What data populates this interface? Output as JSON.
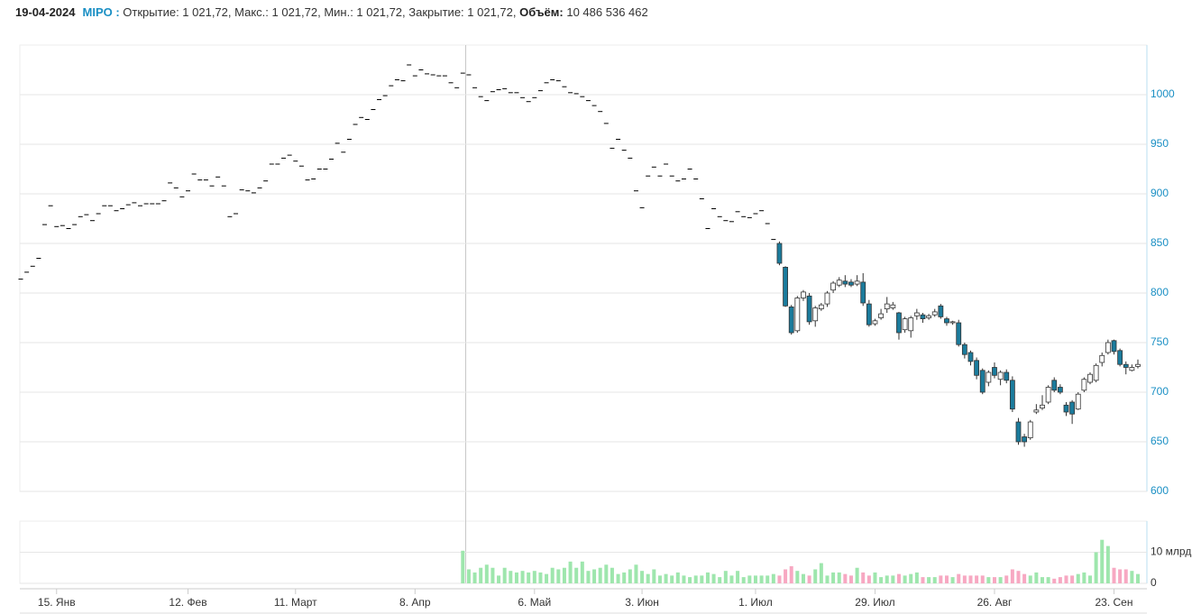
{
  "chart_data": {
    "type": "candlestick",
    "header": {
      "date": "19-04-2024",
      "ticker": "MIPO :",
      "quote": "Открытие: 1 021,72, Макс.: 1 021,72, Мин.: 1 021,72, Закрытие: 1 021,72,",
      "volume_label": "Объём:",
      "volume": "10 486 536 462"
    },
    "categories": [
      null,
      null,
      null,
      null,
      null,
      null,
      "15. Янв",
      null,
      null,
      null,
      null,
      null,
      null,
      null,
      null,
      null,
      null,
      null,
      null,
      null,
      null,
      null,
      null,
      null,
      null,
      null,
      null,
      null,
      "12. Фев",
      null,
      null,
      null,
      null,
      null,
      null,
      null,
      null,
      null,
      null,
      null,
      null,
      null,
      null,
      null,
      null,
      null,
      "11. Март",
      null,
      null,
      null,
      null,
      null,
      null,
      null,
      null,
      null,
      null,
      null,
      null,
      null,
      null,
      null,
      null,
      null,
      null,
      null,
      "8. Апр",
      null,
      null,
      null,
      null,
      null,
      null,
      null,
      null,
      null,
      null,
      null,
      null,
      null,
      null,
      null,
      null,
      null,
      null,
      null,
      "6. Май",
      null,
      null,
      null,
      null,
      null,
      null,
      null,
      null,
      null,
      null,
      null,
      null,
      null,
      null,
      null,
      null,
      null,
      "3. Июн",
      null,
      null,
      null,
      null,
      null,
      null,
      null,
      null,
      null,
      null,
      null,
      null,
      null,
      null,
      null,
      null,
      null,
      null,
      "1. Июл",
      null,
      null,
      null,
      null,
      null,
      null,
      null,
      null,
      null,
      null,
      null,
      null,
      null,
      null,
      null,
      null,
      null,
      null,
      null,
      "29. Июл",
      null,
      null,
      null,
      null,
      null,
      null,
      null,
      null,
      null,
      null,
      null,
      null,
      null,
      null,
      null,
      null,
      null,
      null,
      null,
      "26. Авг",
      null,
      null,
      null,
      null,
      null,
      null,
      null,
      null,
      null,
      null,
      null,
      null,
      null,
      null,
      null,
      null,
      null,
      null,
      null,
      "23. Сен",
      null,
      null,
      null,
      null
    ],
    "open": [
      814,
      821,
      827,
      835,
      869,
      888,
      867,
      868,
      865,
      869,
      877,
      879,
      873,
      880,
      888,
      888,
      883,
      885,
      889,
      891,
      888,
      890,
      890,
      890,
      893,
      911,
      906,
      897,
      903,
      920,
      914,
      914,
      908,
      917,
      908,
      877,
      880,
      904,
      903,
      901,
      906,
      913,
      930,
      930,
      936,
      939,
      933,
      928,
      914,
      915,
      925,
      925,
      935,
      951,
      942,
      955,
      970,
      977,
      975,
      985,
      995,
      999,
      1009,
      1015,
      1014,
      1030,
      1019,
      1025,
      1021,
      1020,
      1019,
      1019,
      1012,
      1007,
      1021.72,
      1020,
      1007,
      998,
      994,
      1003,
      1005,
      1006,
      1002,
      1002,
      997,
      993,
      997,
      1004,
      1012,
      1015,
      1014,
      1008,
      1002,
      1001,
      998,
      994,
      989,
      983,
      971,
      946,
      955,
      944,
      936,
      903,
      886,
      918,
      927,
      918,
      930,
      918,
      913,
      915,
      925,
      915,
      895,
      865,
      885,
      877,
      873,
      872,
      882,
      877,
      876,
      880,
      883,
      870,
      854,
      850,
      826,
      786,
      762,
      795,
      797,
      772,
      784,
      789,
      803,
      808,
      812,
      811,
      809,
      811,
      789,
      769,
      775,
      784,
      785,
      780,
      763,
      762,
      777,
      778,
      775,
      778,
      787,
      774,
      770,
      770,
      748,
      740,
      732,
      722,
      710,
      725,
      713,
      720,
      712,
      670,
      655,
      654,
      680,
      684,
      690,
      712,
      705,
      687,
      690,
      683,
      702,
      710,
      712,
      730,
      740,
      752,
      742,
      728,
      722,
      726
    ],
    "high": [
      814,
      821,
      827,
      835,
      869,
      888,
      867,
      868,
      865,
      869,
      877,
      879,
      873,
      880,
      888,
      888,
      883,
      885,
      889,
      891,
      888,
      890,
      890,
      890,
      893,
      911,
      906,
      897,
      903,
      920,
      914,
      914,
      908,
      917,
      908,
      877,
      880,
      904,
      903,
      901,
      906,
      913,
      930,
      930,
      936,
      939,
      933,
      928,
      914,
      915,
      925,
      925,
      935,
      951,
      942,
      955,
      970,
      977,
      975,
      985,
      995,
      999,
      1009,
      1015,
      1014,
      1030,
      1019,
      1025,
      1021,
      1020,
      1019,
      1019,
      1012,
      1007,
      1021.72,
      1020,
      1007,
      998,
      994,
      1003,
      1005,
      1006,
      1002,
      1002,
      997,
      993,
      997,
      1004,
      1012,
      1015,
      1014,
      1008,
      1002,
      1001,
      998,
      994,
      989,
      983,
      971,
      946,
      955,
      944,
      936,
      903,
      886,
      918,
      927,
      918,
      930,
      918,
      913,
      915,
      925,
      915,
      895,
      865,
      885,
      877,
      873,
      872,
      882,
      877,
      876,
      880,
      883,
      870,
      854,
      852,
      827,
      788,
      797,
      803,
      800,
      787,
      790,
      802,
      812,
      816,
      818,
      814,
      818,
      820,
      793,
      774,
      784,
      796,
      791,
      781,
      776,
      777,
      784,
      780,
      779,
      784,
      789,
      776,
      772,
      773,
      750,
      742,
      735,
      724,
      722,
      730,
      722,
      723,
      716,
      674,
      658,
      672,
      688,
      697,
      707,
      715,
      708,
      690,
      692,
      700,
      715,
      720,
      729,
      740,
      753,
      753,
      744,
      731,
      728,
      733
    ],
    "low": [
      814,
      821,
      827,
      835,
      869,
      888,
      867,
      868,
      865,
      869,
      877,
      879,
      873,
      880,
      888,
      888,
      883,
      885,
      889,
      891,
      888,
      890,
      890,
      890,
      893,
      911,
      906,
      897,
      903,
      920,
      914,
      914,
      908,
      917,
      908,
      877,
      880,
      904,
      903,
      901,
      906,
      913,
      930,
      930,
      936,
      939,
      933,
      928,
      914,
      915,
      925,
      925,
      935,
      951,
      942,
      955,
      970,
      977,
      975,
      985,
      995,
      999,
      1009,
      1015,
      1014,
      1030,
      1019,
      1025,
      1021,
      1020,
      1019,
      1019,
      1012,
      1007,
      1021.72,
      1020,
      1007,
      998,
      994,
      1003,
      1005,
      1006,
      1002,
      1002,
      997,
      993,
      997,
      1004,
      1012,
      1015,
      1014,
      1008,
      1002,
      1001,
      998,
      994,
      989,
      983,
      971,
      946,
      955,
      944,
      936,
      903,
      886,
      918,
      927,
      918,
      930,
      918,
      913,
      915,
      925,
      915,
      895,
      865,
      885,
      877,
      873,
      872,
      882,
      877,
      876,
      880,
      883,
      870,
      854,
      828,
      786,
      758,
      760,
      792,
      768,
      766,
      782,
      786,
      800,
      806,
      806,
      806,
      807,
      787,
      766,
      767,
      773,
      780,
      783,
      753,
      760,
      755,
      773,
      770,
      773,
      776,
      774,
      767,
      768,
      746,
      734,
      727,
      713,
      698,
      706,
      714,
      707,
      709,
      680,
      647,
      645,
      652,
      678,
      682,
      688,
      700,
      698,
      676,
      668,
      682,
      700,
      708,
      710,
      726,
      738,
      738,
      726,
      718,
      721,
      724
    ],
    "close": [
      814,
      821,
      827,
      835,
      869,
      888,
      867,
      868,
      865,
      869,
      877,
      879,
      873,
      880,
      888,
      888,
      883,
      885,
      889,
      891,
      888,
      890,
      890,
      890,
      893,
      911,
      906,
      897,
      903,
      920,
      914,
      914,
      908,
      917,
      908,
      877,
      880,
      904,
      903,
      901,
      906,
      913,
      930,
      930,
      936,
      939,
      933,
      928,
      914,
      915,
      925,
      925,
      935,
      951,
      942,
      955,
      970,
      977,
      975,
      985,
      995,
      999,
      1009,
      1015,
      1014,
      1030,
      1019,
      1025,
      1021,
      1020,
      1019,
      1019,
      1012,
      1007,
      1021.72,
      1020,
      1007,
      998,
      994,
      1003,
      1005,
      1006,
      1002,
      1002,
      997,
      993,
      997,
      1004,
      1012,
      1015,
      1014,
      1008,
      1002,
      1001,
      998,
      994,
      989,
      983,
      971,
      946,
      955,
      944,
      936,
      903,
      886,
      918,
      927,
      918,
      930,
      918,
      913,
      915,
      925,
      915,
      895,
      865,
      885,
      877,
      873,
      872,
      882,
      877,
      876,
      880,
      883,
      870,
      854,
      830,
      787,
      760,
      795,
      801,
      771,
      785,
      788,
      800,
      810,
      813,
      809,
      808,
      812,
      790,
      768,
      772,
      779,
      789,
      788,
      760,
      774,
      775,
      780,
      774,
      777,
      781,
      776,
      770,
      771,
      748,
      738,
      731,
      717,
      700,
      720,
      717,
      720,
      712,
      683,
      650,
      650,
      670,
      682,
      687,
      705,
      702,
      700,
      680,
      678,
      698,
      713,
      718,
      727,
      737,
      750,
      741,
      728,
      725,
      725,
      728
    ],
    "volume": [
      null,
      null,
      null,
      null,
      null,
      null,
      null,
      null,
      null,
      null,
      null,
      null,
      null,
      null,
      null,
      null,
      null,
      null,
      null,
      null,
      null,
      null,
      null,
      null,
      null,
      null,
      null,
      null,
      null,
      null,
      null,
      null,
      null,
      null,
      null,
      null,
      null,
      null,
      null,
      null,
      null,
      null,
      null,
      null,
      null,
      null,
      null,
      null,
      null,
      null,
      null,
      null,
      null,
      null,
      null,
      null,
      null,
      null,
      null,
      null,
      null,
      null,
      null,
      null,
      null,
      null,
      null,
      null,
      null,
      null,
      null,
      null,
      null,
      null,
      10.49,
      4.5,
      3.5,
      5,
      6,
      5,
      2.5,
      5,
      4,
      3.5,
      4,
      3.5,
      4,
      3.5,
      3,
      5,
      4.5,
      5,
      7,
      5,
      7,
      4,
      4.5,
      5,
      6,
      5,
      3,
      3.5,
      4.5,
      6,
      4,
      3,
      4.5,
      2.5,
      3,
      2.5,
      3.5,
      2.5,
      2,
      2.5,
      2.5,
      3.5,
      3,
      2,
      4,
      2.5,
      4,
      2,
      2.5,
      2.5,
      2.5,
      2.5,
      3,
      2.5,
      4.5,
      5.5,
      4,
      3,
      2.5,
      4.5,
      6.5,
      2.5,
      3.5,
      3.5,
      3,
      2.5,
      5,
      3.5,
      2.5,
      3.5,
      2,
      2.5,
      2.5,
      3,
      2.5,
      3,
      3.5,
      2,
      2,
      2,
      2.5,
      2.5,
      2,
      3,
      2.5,
      2.5,
      2.5,
      2.5,
      2,
      2,
      2,
      2.5,
      4.5,
      4,
      3,
      2.5,
      3.5,
      2,
      2,
      1.5,
      2,
      2.5,
      2.5,
      3,
      3.5,
      2.5,
      10,
      14,
      12,
      5,
      4.5,
      4.5,
      4,
      3
    ],
    "up_color": "#ffffff",
    "down_color": "#1b7b9c",
    "dash_color": "#000000",
    "volume_up_color": "#9ee6ad",
    "volume_down_color": "#f7a8c2",
    "ylim": [
      600,
      1050
    ],
    "yticks": [
      600,
      650,
      700,
      750,
      800,
      850,
      900,
      950,
      1000
    ],
    "volume_ylim": [
      0,
      20
    ],
    "volume_yticks": [
      0,
      {
        "value": 10,
        "label": "10 млрд"
      }
    ],
    "grid": true
  }
}
